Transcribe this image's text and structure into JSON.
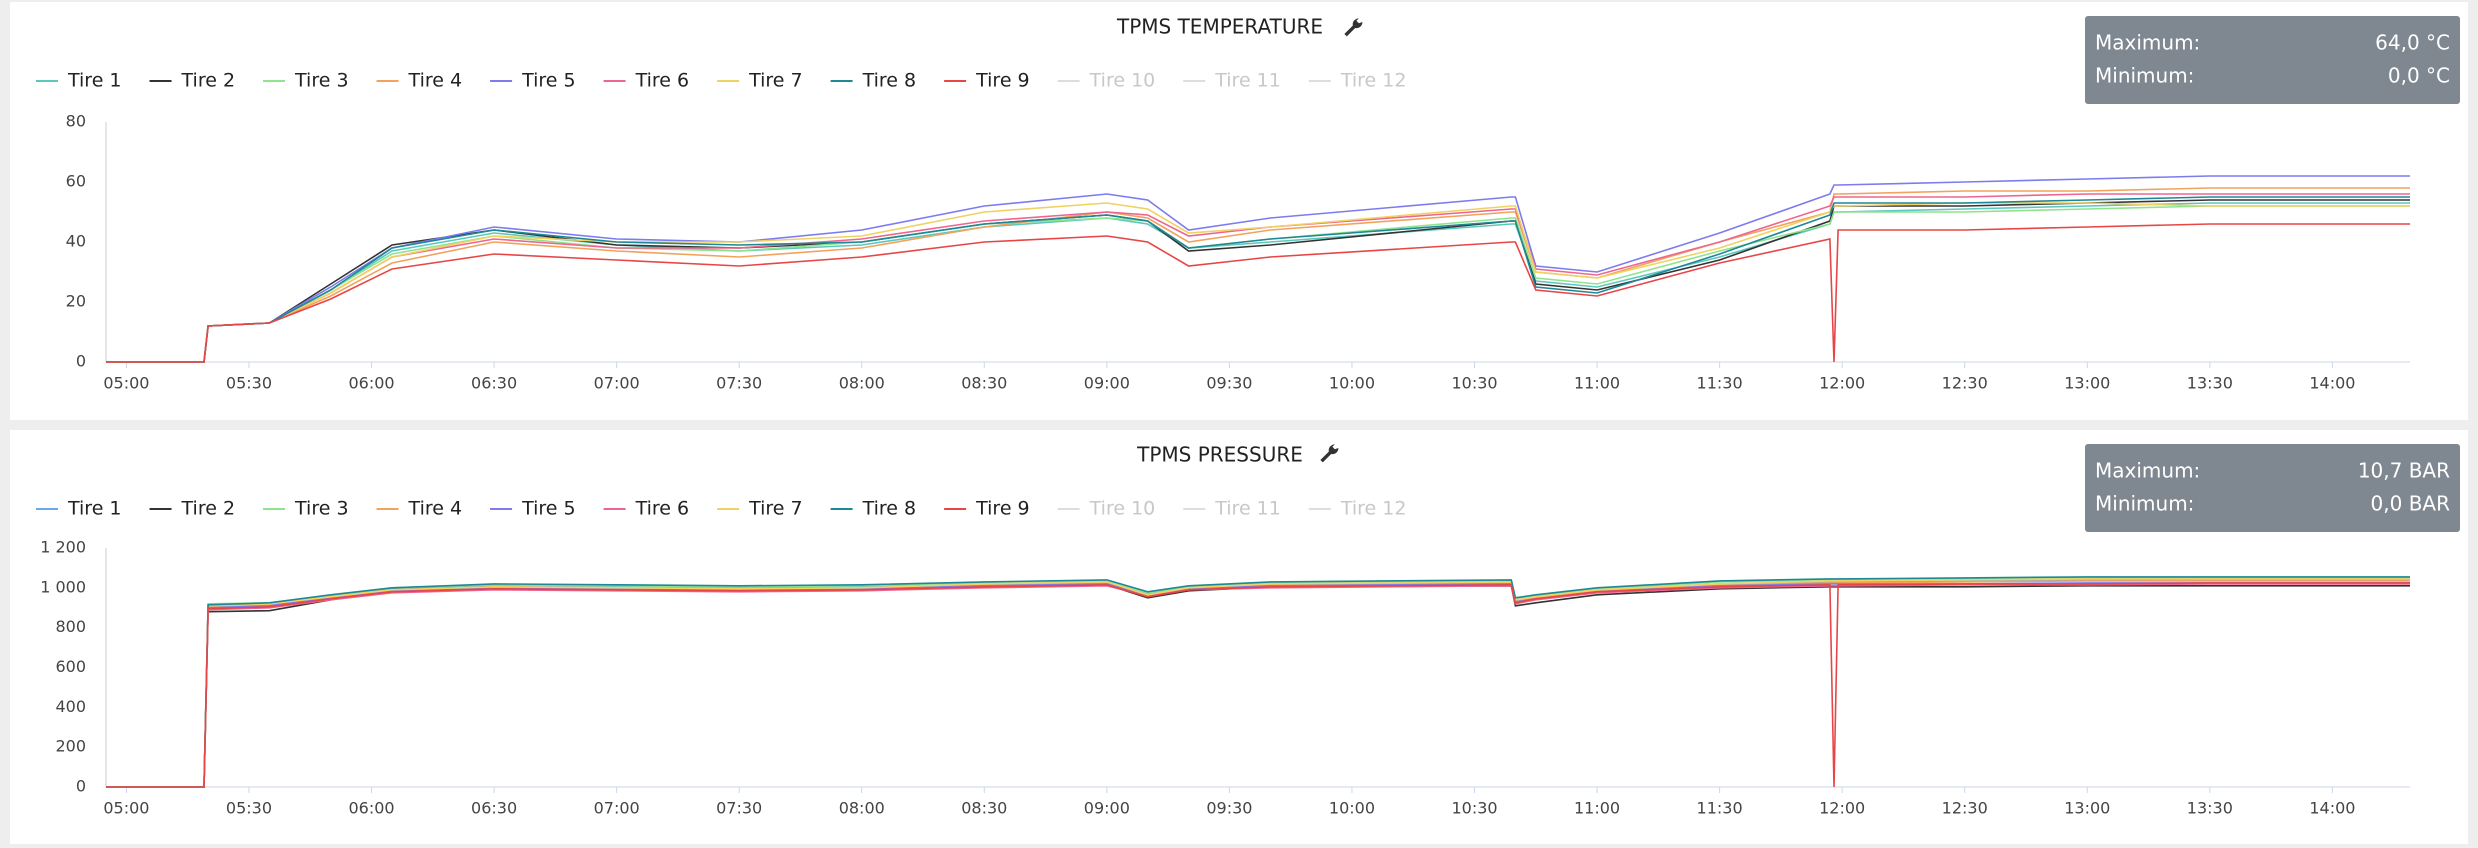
{
  "chart_data": [
    {
      "type": "line",
      "title": "TPMS TEMPERATURE",
      "stats": [
        {
          "label": "Maximum:",
          "value": "64,0 °C"
        },
        {
          "label": "Minimum:",
          "value": "0,0 °C"
        }
      ],
      "x": [
        "04:55",
        "05:19",
        "05:20",
        "05:35",
        "05:50",
        "06:05",
        "06:30",
        "07:00",
        "07:30",
        "08:00",
        "08:30",
        "09:00",
        "09:10",
        "09:20",
        "09:40",
        "10:39",
        "10:40",
        "10:45",
        "11:00",
        "11:30",
        "11:57",
        "11:58",
        "11:59",
        "12:30",
        "13:00",
        "13:30",
        "14:19"
      ],
      "xlim": [
        "04:55",
        "14:19"
      ],
      "xticks": [
        "05:00",
        "05:30",
        "06:00",
        "06:30",
        "07:00",
        "07:30",
        "08:00",
        "08:30",
        "09:00",
        "09:30",
        "10:00",
        "10:30",
        "11:00",
        "11:30",
        "12:00",
        "12:30",
        "13:00",
        "13:30",
        "14:00"
      ],
      "ylim": [
        0,
        80
      ],
      "yticks": [
        0,
        20,
        40,
        60,
        80
      ],
      "series": [
        {
          "name": "Tire 1",
          "color": "#5cc8bc",
          "values": [
            0,
            0,
            12,
            13,
            24,
            37,
            43,
            39,
            37,
            39,
            45,
            48,
            46,
            38,
            40,
            46,
            46,
            27,
            25,
            35,
            46,
            50,
            50,
            51,
            52,
            53,
            53
          ]
        },
        {
          "name": "Tire 2",
          "color": "#333333",
          "values": [
            0,
            0,
            12,
            13,
            26,
            39,
            44,
            39,
            38,
            40,
            46,
            49,
            47,
            37,
            39,
            47,
            47,
            26,
            24,
            34,
            47,
            52,
            52,
            52,
            53,
            54,
            54
          ]
        },
        {
          "name": "Tire 3",
          "color": "#8fe38f",
          "values": [
            0,
            0,
            12,
            13,
            24,
            36,
            42,
            38,
            37,
            40,
            46,
            48,
            47,
            38,
            41,
            48,
            48,
            28,
            26,
            37,
            46,
            50,
            50,
            50,
            51,
            52,
            52
          ]
        },
        {
          "name": "Tire 4",
          "color": "#f2a25c",
          "values": [
            0,
            0,
            12,
            13,
            22,
            33,
            40,
            37,
            35,
            38,
            45,
            50,
            48,
            40,
            44,
            50,
            50,
            30,
            28,
            40,
            50,
            56,
            56,
            57,
            57,
            58,
            58
          ]
        },
        {
          "name": "Tire 5",
          "color": "#7d7bee",
          "values": [
            0,
            0,
            12,
            13,
            25,
            38,
            45,
            41,
            40,
            44,
            52,
            56,
            54,
            44,
            48,
            55,
            55,
            32,
            30,
            43,
            56,
            59,
            59,
            60,
            61,
            62,
            62
          ]
        },
        {
          "name": "Tire 6",
          "color": "#ee6690",
          "values": [
            0,
            0,
            12,
            13,
            23,
            35,
            41,
            38,
            38,
            41,
            47,
            50,
            49,
            42,
            45,
            51,
            51,
            31,
            29,
            40,
            52,
            55,
            55,
            55,
            56,
            56,
            56
          ]
        },
        {
          "name": "Tire 7",
          "color": "#f0d262",
          "values": [
            0,
            0,
            12,
            13,
            23,
            35,
            42,
            40,
            40,
            42,
            50,
            53,
            51,
            43,
            45,
            52,
            52,
            30,
            28,
            38,
            50,
            52,
            52,
            53,
            53,
            52,
            52
          ]
        },
        {
          "name": "Tire 8",
          "color": "#1f8896",
          "values": [
            0,
            0,
            12,
            13,
            24,
            38,
            44,
            40,
            39,
            40,
            46,
            49,
            47,
            38,
            41,
            47,
            47,
            25,
            23,
            36,
            49,
            53,
            53,
            53,
            54,
            55,
            55
          ]
        },
        {
          "name": "Tire 9",
          "color": "#e84646",
          "values": [
            0,
            0,
            12,
            13,
            21,
            31,
            36,
            34,
            32,
            35,
            40,
            42,
            40,
            32,
            35,
            40,
            40,
            24,
            22,
            33,
            41,
            0,
            44,
            44,
            45,
            46,
            46
          ]
        }
      ],
      "hidden_series": [
        "Tire 10",
        "Tire 11",
        "Tire 12"
      ]
    },
    {
      "type": "line",
      "title": "TPMS PRESSURE",
      "stats": [
        {
          "label": "Maximum:",
          "value": "10,7 BAR"
        },
        {
          "label": "Minimum:",
          "value": "0,0 BAR"
        }
      ],
      "x": [
        "04:55",
        "05:19",
        "05:20",
        "05:35",
        "05:50",
        "06:05",
        "06:30",
        "07:00",
        "07:30",
        "08:00",
        "08:30",
        "09:00",
        "09:10",
        "09:20",
        "09:40",
        "10:39",
        "10:40",
        "10:45",
        "11:00",
        "11:30",
        "11:57",
        "11:58",
        "11:59",
        "12:30",
        "13:00",
        "13:30",
        "14:19"
      ],
      "xlim": [
        "04:55",
        "14:19"
      ],
      "xticks": [
        "05:00",
        "05:30",
        "06:00",
        "06:30",
        "07:00",
        "07:30",
        "08:00",
        "08:30",
        "09:00",
        "09:30",
        "10:00",
        "10:30",
        "11:00",
        "11:30",
        "12:00",
        "12:30",
        "13:00",
        "13:30",
        "14:00"
      ],
      "ylim": [
        0,
        1200
      ],
      "yticks": [
        0,
        200,
        400,
        600,
        800,
        {
          "value": 1000,
          "label": "1 000"
        },
        {
          "value": 1200,
          "label": "1 200"
        }
      ],
      "series": [
        {
          "name": "Tire 1",
          "color": "#6aa8ec",
          "values": [
            0,
            0,
            910,
            920,
            960,
            995,
            1010,
            1005,
            1000,
            1005,
            1020,
            1030,
            970,
            1000,
            1020,
            1030,
            940,
            955,
            990,
            1020,
            1030,
            1030,
            1030,
            1035,
            1040,
            1040,
            1040
          ]
        },
        {
          "name": "Tire 2",
          "color": "#333333",
          "values": [
            0,
            0,
            880,
            885,
            940,
            990,
            1005,
            995,
            990,
            990,
            1005,
            1015,
            950,
            985,
            1005,
            1010,
            910,
            925,
            965,
            995,
            1005,
            1005,
            1005,
            1005,
            1010,
            1010,
            1010
          ]
        },
        {
          "name": "Tire 3",
          "color": "#8fe38f",
          "values": [
            0,
            0,
            920,
            925,
            960,
            1000,
            1015,
            1010,
            1005,
            1010,
            1025,
            1035,
            975,
            1005,
            1025,
            1035,
            945,
            960,
            995,
            1030,
            1040,
            1040,
            1040,
            1045,
            1050,
            1050,
            1050
          ]
        },
        {
          "name": "Tire 4",
          "color": "#f2a25c",
          "values": [
            0,
            0,
            905,
            915,
            955,
            990,
            1005,
            1000,
            995,
            1000,
            1015,
            1025,
            960,
            995,
            1015,
            1025,
            935,
            950,
            985,
            1015,
            1025,
            1025,
            1025,
            1030,
            1035,
            1035,
            1035
          ]
        },
        {
          "name": "Tire 5",
          "color": "#7d7bee",
          "values": [
            0,
            0,
            900,
            910,
            950,
            985,
            1000,
            995,
            990,
            995,
            1010,
            1020,
            960,
            995,
            1010,
            1020,
            930,
            945,
            980,
            1010,
            1020,
            1020,
            1020,
            1020,
            1025,
            1025,
            1025
          ]
        },
        {
          "name": "Tire 6",
          "color": "#ee6690",
          "values": [
            0,
            0,
            890,
            900,
            940,
            975,
            990,
            985,
            980,
            985,
            1000,
            1010,
            960,
            990,
            1000,
            1010,
            920,
            940,
            975,
            1000,
            1010,
            1010,
            1010,
            1015,
            1015,
            1020,
            1020
          ]
        },
        {
          "name": "Tire 7",
          "color": "#f0d262",
          "values": [
            0,
            0,
            910,
            920,
            955,
            990,
            1005,
            1000,
            995,
            1000,
            1020,
            1030,
            965,
            1000,
            1020,
            1030,
            940,
            955,
            990,
            1020,
            1035,
            1035,
            1035,
            1040,
            1045,
            1045,
            1045
          ]
        },
        {
          "name": "Tire 8",
          "color": "#1f8896",
          "values": [
            0,
            0,
            915,
            925,
            965,
            1000,
            1020,
            1015,
            1010,
            1015,
            1030,
            1040,
            980,
            1010,
            1030,
            1040,
            950,
            965,
            1000,
            1035,
            1045,
            1045,
            1045,
            1050,
            1055,
            1055,
            1055
          ]
        },
        {
          "name": "Tire 9",
          "color": "#e84646",
          "values": [
            0,
            0,
            895,
            905,
            945,
            980,
            995,
            990,
            985,
            990,
            1005,
            1015,
            955,
            990,
            1005,
            1015,
            925,
            945,
            980,
            1005,
            1015,
            0,
            1015,
            1020,
            1020,
            1025,
            1025
          ]
        }
      ],
      "hidden_series": [
        "Tire 10",
        "Tire 11",
        "Tire 12"
      ]
    }
  ]
}
